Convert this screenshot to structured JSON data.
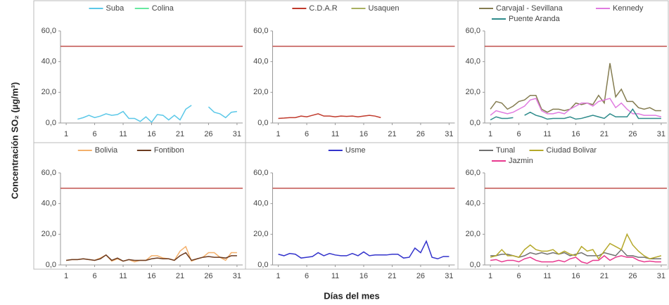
{
  "ylabel": "Concentración SO₂ (µg/m³)",
  "xlabel": "Días del mes",
  "chart_data": [
    {
      "type": "line",
      "x": [
        1,
        2,
        3,
        4,
        5,
        6,
        7,
        8,
        9,
        10,
        11,
        12,
        13,
        14,
        15,
        16,
        17,
        18,
        19,
        20,
        21,
        22,
        23,
        24,
        25,
        26,
        27,
        28,
        29,
        30,
        31
      ],
      "series": [
        {
          "name": "Suba",
          "color": "#5bc8e8",
          "values": [
            null,
            null,
            2.5,
            3.5,
            5,
            3.5,
            4.5,
            6,
            5,
            5.5,
            7.5,
            3,
            3,
            1,
            4,
            0.5,
            5.5,
            5,
            2,
            5,
            2,
            9,
            11.5,
            null,
            null,
            10.5,
            7,
            6,
            3.5,
            7,
            7.5
          ]
        },
        {
          "name": "Colina",
          "color": "#66e8a0",
          "values": [
            null,
            null,
            null,
            null,
            null,
            null,
            null,
            null,
            null,
            null,
            null,
            null,
            null,
            null,
            null,
            null,
            null,
            null,
            null,
            null,
            null,
            null,
            null,
            null,
            null,
            null,
            null,
            null,
            null,
            null,
            null
          ]
        }
      ],
      "hline": {
        "value": 50,
        "color": "#c0504d"
      },
      "xlim": [
        0,
        32
      ],
      "xticks": [
        1,
        6,
        11,
        16,
        21,
        26,
        31
      ],
      "ylim": [
        0,
        60
      ],
      "yticks": [
        {
          "value": 0,
          "label": "0,0"
        },
        {
          "value": 20,
          "label": "20,0"
        },
        {
          "value": 40,
          "label": "40,0"
        },
        {
          "value": 60,
          "label": "60,0"
        }
      ]
    },
    {
      "type": "line",
      "x": [
        1,
        2,
        3,
        4,
        5,
        6,
        7,
        8,
        9,
        10,
        11,
        12,
        13,
        14,
        15,
        16,
        17,
        18,
        19,
        20,
        21,
        22,
        23,
        24,
        25,
        26,
        27,
        28,
        29,
        30,
        31
      ],
      "series": [
        {
          "name": "C.D.A.R",
          "color": "#c0392b",
          "values": [
            3,
            3.2,
            3.5,
            3.5,
            4.5,
            4,
            5,
            6,
            4.5,
            4.5,
            4,
            4.5,
            4.3,
            4.5,
            4,
            4.5,
            5,
            4.5,
            3.5,
            null,
            null,
            null,
            null,
            null,
            null,
            null,
            null,
            null,
            null,
            null,
            null
          ]
        },
        {
          "name": "Usaquen",
          "color": "#a8b060",
          "values": [
            null,
            null,
            null,
            null,
            null,
            null,
            null,
            null,
            null,
            null,
            null,
            null,
            null,
            null,
            null,
            null,
            null,
            null,
            null,
            null,
            null,
            null,
            null,
            null,
            null,
            null,
            null,
            null,
            null,
            null,
            null
          ]
        }
      ],
      "hline": {
        "value": 50,
        "color": "#c0504d"
      },
      "xlim": [
        0,
        32
      ],
      "xticks": [
        1,
        6,
        11,
        16,
        21,
        26,
        31
      ],
      "ylim": [
        0,
        60
      ],
      "yticks": [
        {
          "value": 0,
          "label": "0,0"
        },
        {
          "value": 20,
          "label": "20,0"
        },
        {
          "value": 40,
          "label": "40,0"
        },
        {
          "value": 60,
          "label": "60,0"
        }
      ]
    },
    {
      "type": "line",
      "x": [
        1,
        2,
        3,
        4,
        5,
        6,
        7,
        8,
        9,
        10,
        11,
        12,
        13,
        14,
        15,
        16,
        17,
        18,
        19,
        20,
        21,
        22,
        23,
        24,
        25,
        26,
        27,
        28,
        29,
        30,
        31
      ],
      "series": [
        {
          "name": "Carvajal - Sevillana",
          "color": "#847c50",
          "values": [
            9,
            14,
            13,
            9,
            11,
            14,
            15,
            18,
            18,
            9,
            7,
            9,
            9,
            8,
            9,
            13,
            12,
            13,
            12,
            18,
            13,
            39,
            17,
            22,
            14,
            14,
            10,
            9,
            10,
            8,
            8
          ]
        },
        {
          "name": "Kennedy",
          "color": "#e07be0",
          "values": [
            5,
            8,
            7,
            6,
            7,
            9,
            11,
            15,
            16,
            8,
            6,
            6,
            7,
            6,
            9,
            11,
            13,
            13,
            11,
            14,
            15,
            16,
            10,
            13,
            9,
            6,
            6,
            5,
            5,
            5,
            4
          ]
        },
        {
          "name": "Puente Aranda",
          "color": "#2e8b8b",
          "values": [
            2,
            4,
            3,
            3,
            3.5,
            null,
            5,
            7,
            5,
            4,
            2.5,
            3,
            3,
            3,
            4,
            2.5,
            3,
            4,
            5,
            4,
            3,
            6,
            4,
            4,
            4,
            9,
            3,
            3,
            3,
            3,
            3
          ]
        }
      ],
      "hline": {
        "value": 50,
        "color": "#c0504d"
      },
      "xlim": [
        0,
        32
      ],
      "xticks": [
        1,
        6,
        11,
        16,
        21,
        26,
        31
      ],
      "ylim": [
        0,
        60
      ],
      "yticks": [
        {
          "value": 0,
          "label": "0,0"
        },
        {
          "value": 20,
          "label": "20,0"
        },
        {
          "value": 40,
          "label": "40,0"
        },
        {
          "value": 60,
          "label": "60,0"
        }
      ]
    },
    {
      "type": "line",
      "x": [
        1,
        2,
        3,
        4,
        5,
        6,
        7,
        8,
        9,
        10,
        11,
        12,
        13,
        14,
        15,
        16,
        17,
        18,
        19,
        20,
        21,
        22,
        23,
        24,
        25,
        26,
        27,
        28,
        29,
        30,
        31
      ],
      "series": [
        {
          "name": "Bolivia",
          "color": "#f4b06b",
          "values": [
            3,
            3.5,
            3.5,
            4,
            3.5,
            3,
            4.5,
            6.5,
            2.5,
            4,
            2.5,
            3.5,
            2,
            3,
            3,
            6,
            6,
            4.5,
            4,
            3,
            9,
            12,
            2.5,
            4,
            5,
            8,
            8,
            5,
            3,
            8,
            8
          ]
        },
        {
          "name": "Fontibon",
          "color": "#6b3a1f",
          "values": [
            3,
            3.5,
            3.5,
            4,
            3.5,
            3,
            4,
            6.5,
            3,
            4.5,
            2.5,
            3.5,
            3,
            3,
            3,
            4,
            4.5,
            4,
            4,
            3,
            6,
            8,
            3,
            4,
            5,
            5.5,
            5,
            5,
            4.5,
            6,
            6
          ]
        }
      ],
      "hline": {
        "value": 50,
        "color": "#c0504d"
      },
      "xlim": [
        0,
        32
      ],
      "xticks": [
        1,
        6,
        11,
        16,
        21,
        26,
        31
      ],
      "ylim": [
        0,
        60
      ],
      "yticks": [
        {
          "value": 0,
          "label": "0,0"
        },
        {
          "value": 20,
          "label": "20,0"
        },
        {
          "value": 40,
          "label": "40,0"
        },
        {
          "value": 60,
          "label": "60,0"
        }
      ]
    },
    {
      "type": "line",
      "x": [
        1,
        2,
        3,
        4,
        5,
        6,
        7,
        8,
        9,
        10,
        11,
        12,
        13,
        14,
        15,
        16,
        17,
        18,
        19,
        20,
        21,
        22,
        23,
        24,
        25,
        26,
        27,
        28,
        29,
        30,
        31
      ],
      "series": [
        {
          "name": "Usme",
          "color": "#3333cc",
          "values": [
            7,
            6,
            7.5,
            7,
            4.5,
            5,
            5.5,
            8,
            6,
            7.5,
            6.5,
            6,
            6,
            7.5,
            6,
            8.5,
            6,
            6.5,
            6.5,
            6.5,
            7,
            7,
            4.5,
            5,
            11,
            8,
            15.5,
            5,
            4,
            5.5,
            5.5
          ]
        }
      ],
      "hline": {
        "value": 50,
        "color": "#c0504d"
      },
      "xlim": [
        0,
        32
      ],
      "xticks": [
        1,
        6,
        11,
        16,
        21,
        26,
        31
      ],
      "ylim": [
        0,
        60
      ],
      "yticks": [
        {
          "value": 0,
          "label": "0,0"
        },
        {
          "value": 20,
          "label": "20,0"
        },
        {
          "value": 40,
          "label": "40,0"
        },
        {
          "value": 60,
          "label": "60,0"
        }
      ]
    },
    {
      "type": "line",
      "x": [
        1,
        2,
        3,
        4,
        5,
        6,
        7,
        8,
        9,
        10,
        11,
        12,
        13,
        14,
        15,
        16,
        17,
        18,
        19,
        20,
        21,
        22,
        23,
        24,
        25,
        26,
        27,
        28,
        29,
        30,
        31
      ],
      "series": [
        {
          "name": "Tunal",
          "color": "#707070",
          "values": [
            6,
            6,
            7,
            7,
            6,
            5,
            6,
            8,
            7,
            8,
            7,
            8,
            7,
            8,
            6,
            7,
            8,
            6,
            6,
            6,
            8,
            7,
            6,
            10,
            6,
            6,
            5,
            5,
            4,
            4,
            4
          ]
        },
        {
          "name": "Ciudad Bolivar",
          "color": "#b5a82a",
          "values": [
            5,
            6,
            10,
            6,
            6,
            5,
            10,
            13,
            10,
            9,
            9,
            10,
            7,
            9,
            7,
            6,
            12,
            9,
            10,
            4,
            9,
            14,
            12,
            10,
            20,
            13,
            9,
            6,
            4,
            5,
            6
          ]
        },
        {
          "name": "Jazmin",
          "color": "#e8398f",
          "values": [
            3,
            3.5,
            2,
            3,
            3,
            2,
            4,
            5,
            3,
            2,
            2,
            2,
            3,
            2,
            4,
            5,
            2,
            1,
            3,
            3,
            6,
            3,
            5,
            6,
            5,
            5,
            3,
            2,
            2.5,
            2,
            2
          ]
        }
      ],
      "hline": {
        "value": 50,
        "color": "#c0504d"
      },
      "xlim": [
        0,
        32
      ],
      "xticks": [
        1,
        6,
        11,
        16,
        21,
        26,
        31
      ],
      "ylim": [
        0,
        60
      ],
      "yticks": [
        {
          "value": 0,
          "label": "0,0"
        },
        {
          "value": 20,
          "label": "20,0"
        },
        {
          "value": 40,
          "label": "40,0"
        },
        {
          "value": 60,
          "label": "60,0"
        }
      ]
    }
  ]
}
